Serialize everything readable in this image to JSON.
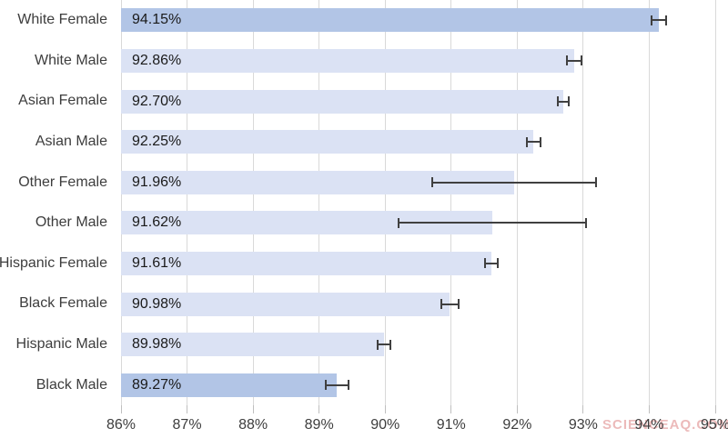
{
  "watermark": {
    "text": "SCIENCEAQ.COM",
    "color": "rgba(221,130,130,0.55)"
  },
  "chart_data": {
    "type": "bar",
    "orientation": "horizontal",
    "title": "",
    "categories": [
      "White Female",
      "White Male",
      "Asian Female",
      "Asian Male",
      "Other Female",
      "Other Male",
      "Hispanic Female",
      "Black Female",
      "Hispanic Male",
      "Black Male"
    ],
    "values": [
      94.15,
      92.86,
      92.7,
      92.25,
      91.96,
      91.62,
      91.61,
      90.98,
      89.98,
      89.27
    ],
    "value_labels": [
      "94.15%",
      "92.86%",
      "92.70%",
      "92.25%",
      "91.96%",
      "91.62%",
      "91.61%",
      "90.98%",
      "89.98%",
      "89.27%"
    ],
    "error_low": [
      94.04,
      92.75,
      92.62,
      92.15,
      90.72,
      90.2,
      91.51,
      90.85,
      89.88,
      89.1
    ],
    "error_high": [
      94.26,
      92.97,
      92.78,
      92.35,
      93.2,
      93.04,
      91.71,
      91.11,
      90.08,
      89.45
    ],
    "xlim": [
      86,
      95
    ],
    "x_tick_values": [
      86,
      87,
      88,
      89,
      90,
      91,
      92,
      93,
      94,
      95
    ],
    "x_tick_labels": [
      "86%",
      "87%",
      "88%",
      "89%",
      "90%",
      "91%",
      "92%",
      "93%",
      "94%",
      "95%"
    ],
    "grid": true,
    "legend": false,
    "highlight_indices": [
      0,
      9
    ],
    "colors": {
      "bar": "#dbe2f4",
      "bar_highlight": "#b2c5e6",
      "gridline": "#d9d9d9",
      "error_bar": "#404040",
      "tick": "#bfbfbf",
      "axis_text": "#3d3d3d",
      "value_text": "#1a1a1a"
    }
  }
}
